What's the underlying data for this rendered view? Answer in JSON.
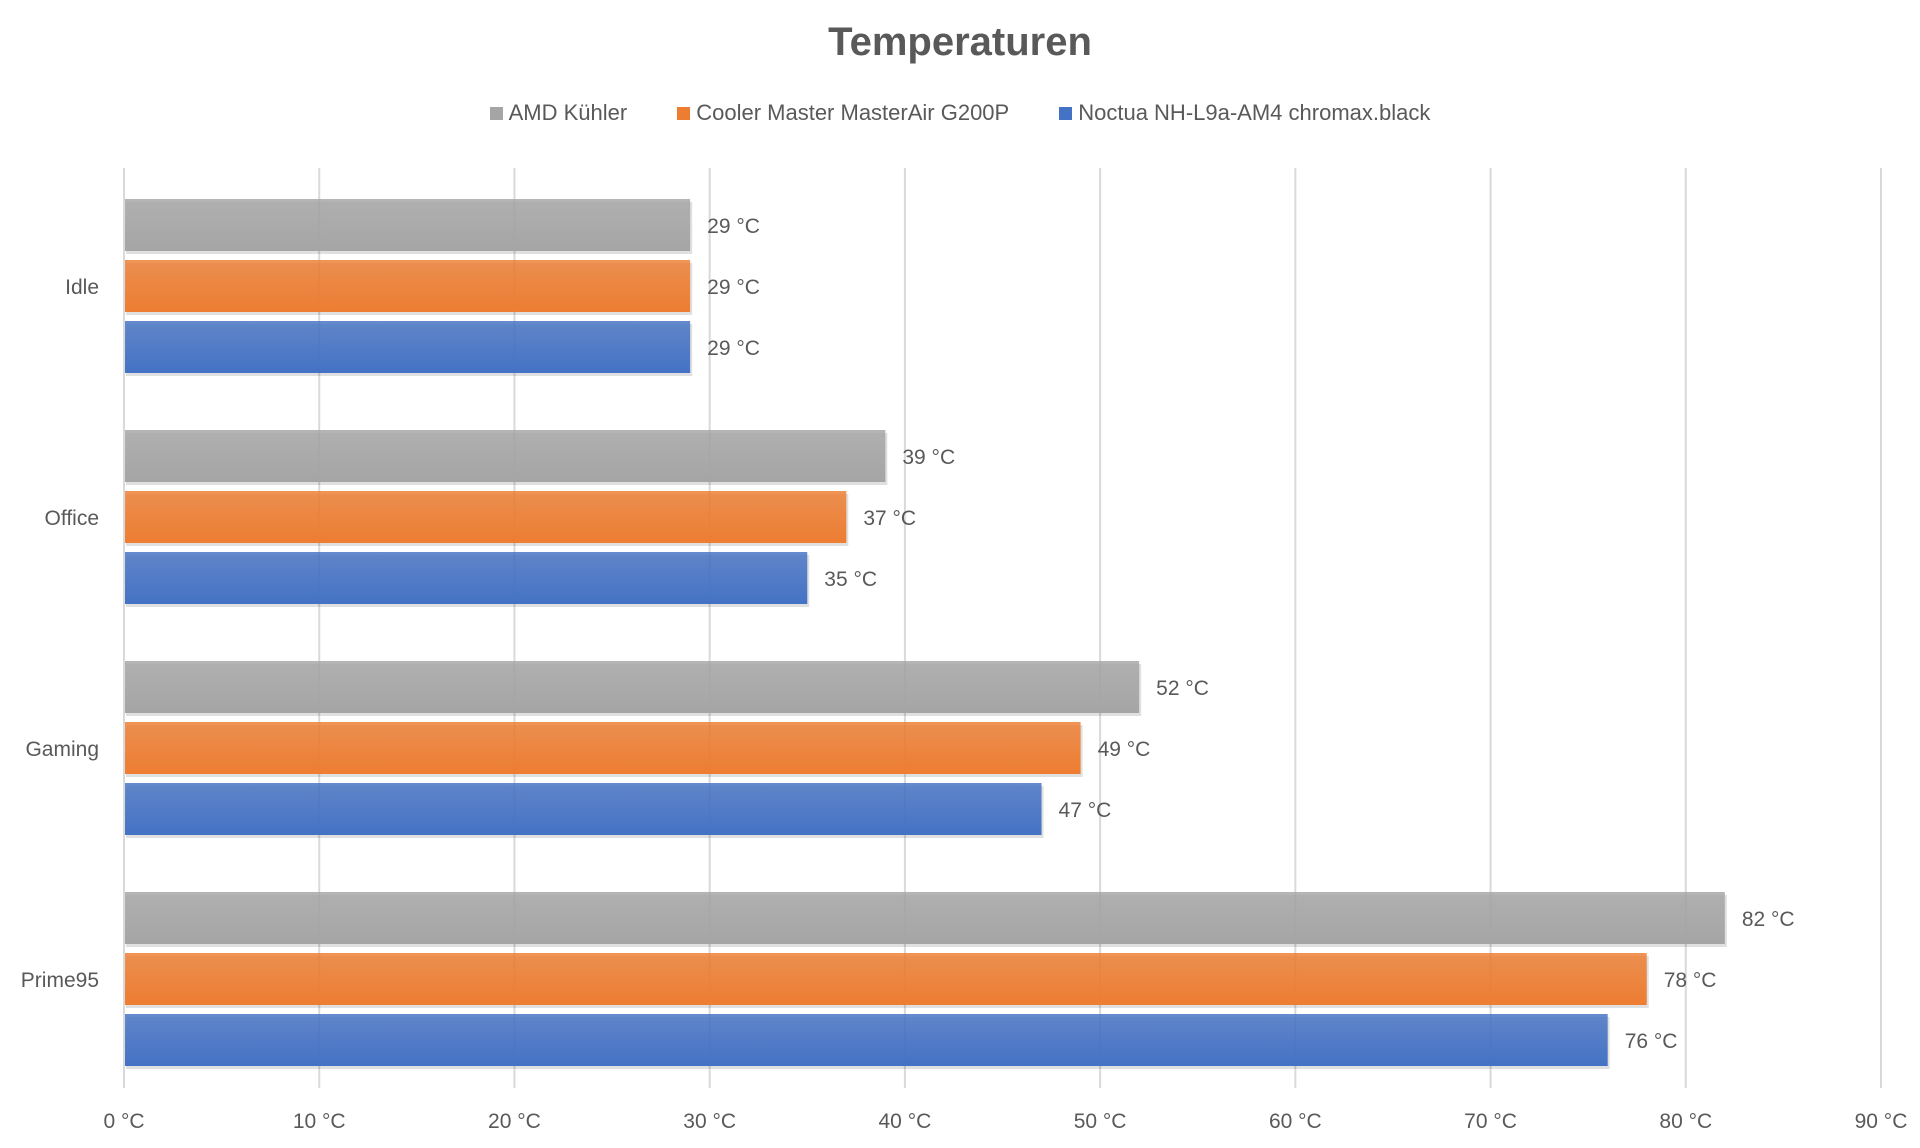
{
  "chart_data": {
    "type": "bar",
    "orientation": "horizontal",
    "title": "Temperaturen",
    "categories": [
      "Idle",
      "Office",
      "Gaming",
      "Prime95"
    ],
    "series": [
      {
        "name": "AMD Kühler",
        "color": "#a5a5a5",
        "values": [
          29,
          39,
          52,
          82
        ],
        "labels": [
          "29 °C",
          "39 °C",
          "52 °C",
          "82 °C"
        ]
      },
      {
        "name": "Cooler Master MasterAir G200P",
        "color": "#ed7d31",
        "values": [
          29,
          37,
          49,
          78
        ],
        "labels": [
          "29 °C",
          "37 °C",
          "49 °C",
          "78 °C"
        ]
      },
      {
        "name": "Noctua NH-L9a-AM4 chromax.black",
        "color": "#4472c4",
        "values": [
          29,
          35,
          47,
          76
        ],
        "labels": [
          "29 °C",
          "35 °C",
          "47 °C",
          "76 °C"
        ]
      }
    ],
    "xlim": [
      0,
      90
    ],
    "xticks": [
      0,
      10,
      20,
      30,
      40,
      50,
      60,
      70,
      80,
      90
    ],
    "xtick_labels": [
      "0 °C",
      "10 °C",
      "20 °C",
      "30 °C",
      "40 °C",
      "50 °C",
      "60 °C",
      "70 °C",
      "80 °C",
      "90 °C"
    ],
    "xlabel": "",
    "ylabel": "",
    "grid": true,
    "legend": "top-center"
  }
}
